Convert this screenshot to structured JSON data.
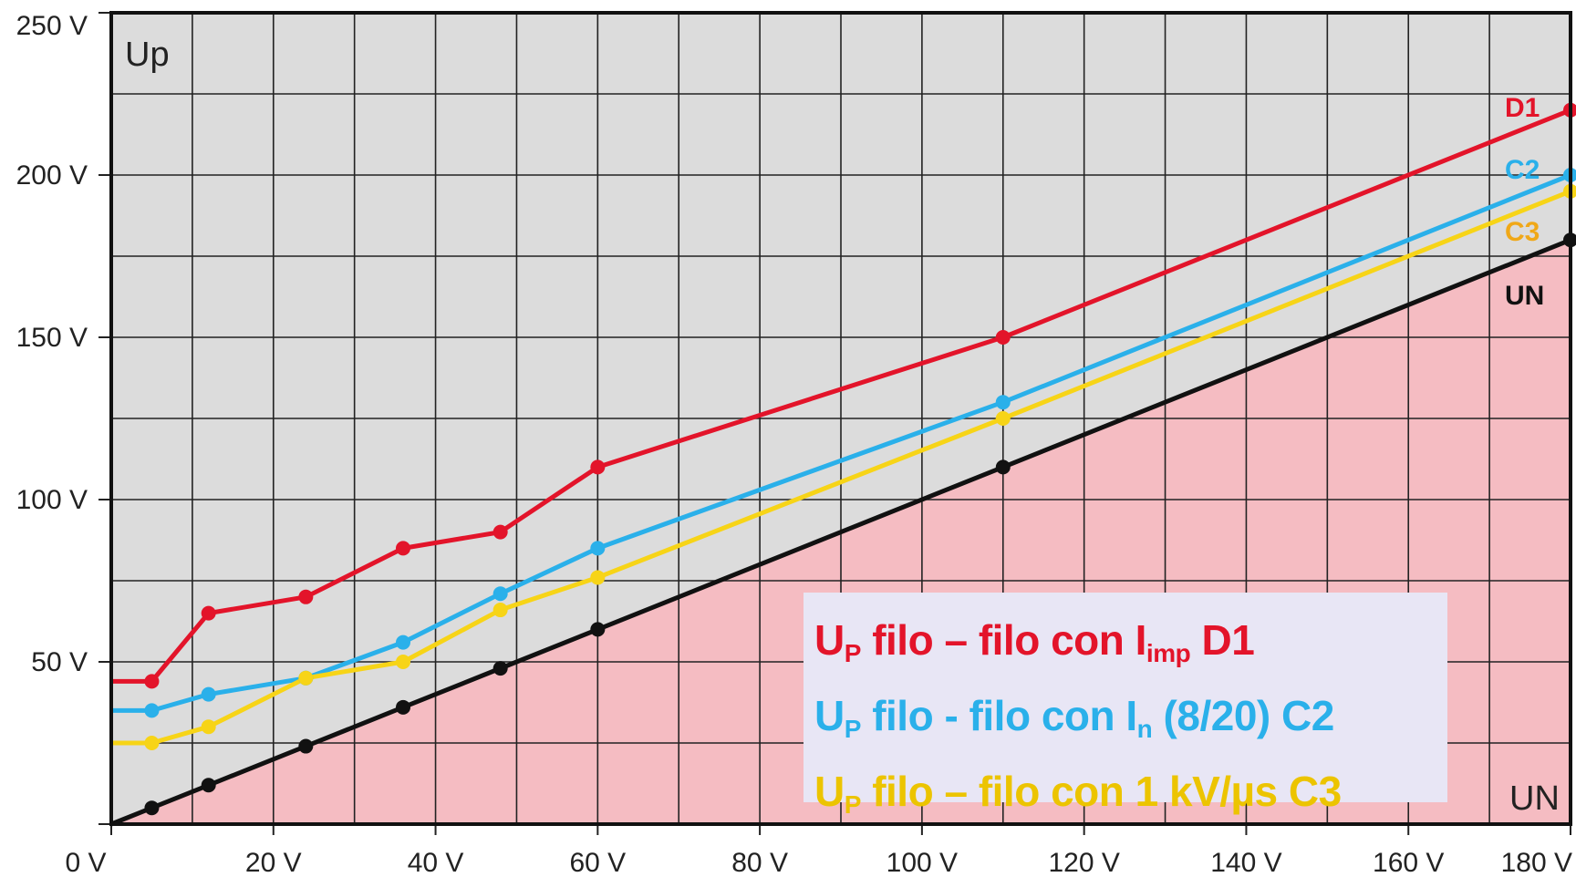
{
  "chart_data": {
    "type": "line",
    "y_corner_label": "Up",
    "x_corner_label": "UN",
    "xlim": [
      0,
      180
    ],
    "ylim": [
      0,
      250
    ],
    "grid": true,
    "x_ticks": [
      "0 V",
      "20 V",
      "40 V",
      "60 V",
      "80 V",
      "100 V",
      "120 V",
      "140 V",
      "160 V",
      "180 V"
    ],
    "y_ticks": [
      "50 V",
      "100 V",
      "150 V",
      "200 V",
      "250 V"
    ],
    "colors": {
      "plot_background": "#dcdcdc",
      "shaded_region": "#f5bcc2",
      "grid": "#222222",
      "D1": "#e3142a",
      "C2": "#2ab0ea",
      "C3": "#f7d417",
      "UN": "#111111"
    },
    "series": [
      {
        "name": "D1",
        "color": "#e3142a",
        "x": [
          0,
          5,
          12,
          24,
          36,
          48,
          60,
          110,
          180
        ],
        "y": [
          44,
          44,
          65,
          70,
          85,
          90,
          110,
          150,
          220
        ]
      },
      {
        "name": "C2",
        "color": "#2ab0ea",
        "x": [
          0,
          5,
          12,
          24,
          36,
          48,
          60,
          110,
          180
        ],
        "y": [
          35,
          35,
          40,
          45,
          56,
          71,
          85,
          130,
          200
        ]
      },
      {
        "name": "C3",
        "color": "#f7d417",
        "x": [
          0,
          5,
          12,
          24,
          36,
          48,
          60,
          110,
          180
        ],
        "y": [
          25,
          25,
          30,
          45,
          50,
          66,
          76,
          125,
          195
        ]
      },
      {
        "name": "UN",
        "color": "#111111",
        "x": [
          0,
          5,
          12,
          24,
          36,
          48,
          60,
          110,
          180
        ],
        "y": [
          0,
          5,
          12,
          24,
          36,
          48,
          60,
          110,
          180
        ]
      }
    ],
    "end_labels": [
      {
        "series": "D1",
        "text": "D1",
        "color": "#e3142a"
      },
      {
        "series": "C2",
        "text": "C2",
        "color": "#2ab0ea"
      },
      {
        "series": "C3",
        "text": "C3",
        "color": "#f0a818"
      },
      {
        "series": "UN",
        "text": "UN",
        "color": "#111111"
      }
    ],
    "legend": {
      "placement": "bottom-right",
      "entries": [
        {
          "pre": "U",
          "sub1": "P",
          "mid": " filo – filo con I",
          "sub2": "imp",
          "post": " D1",
          "color": "#e3142a"
        },
        {
          "pre": "U",
          "sub1": "P",
          "mid": " filo - filo con I",
          "sub2": "n",
          "post": " (8/20) C2",
          "color": "#2ab0ea"
        },
        {
          "pre": "U",
          "sub1": "P",
          "mid": " filo – filo con 1 kV/µs C3",
          "sub2": "",
          "post": "",
          "color": "#ecc400"
        }
      ]
    }
  }
}
